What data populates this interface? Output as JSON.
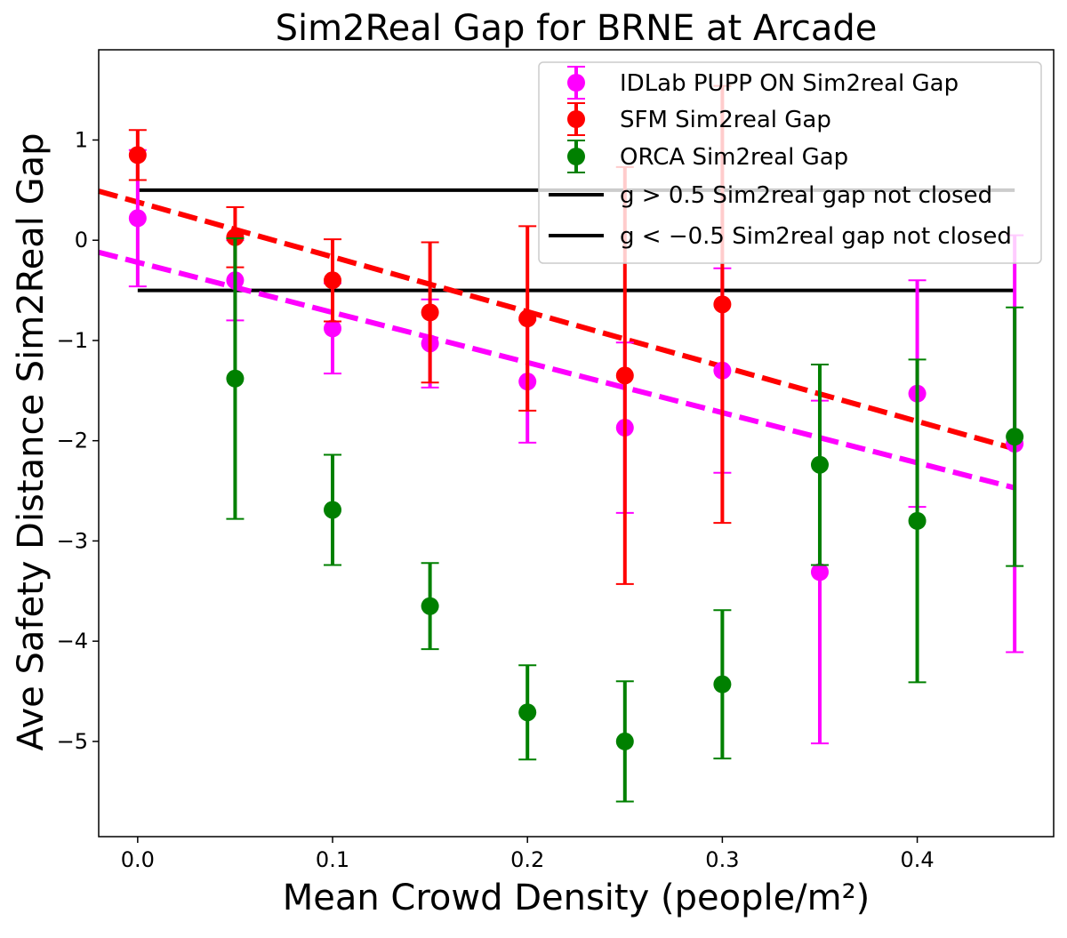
{
  "chart_data": {
    "type": "scatter",
    "title": "Sim2Real Gap for BRNE at Arcade",
    "xlabel": "Mean Crowd Density (people/m²)",
    "ylabel": "Ave Safety Distance Sim2Real Gap",
    "xlim": [
      -0.02,
      0.47
    ],
    "ylim": [
      -5.95,
      1.9
    ],
    "xticks": [
      0.0,
      0.1,
      0.2,
      0.3,
      0.4
    ],
    "xtick_labels": [
      "0.0",
      "0.1",
      "0.2",
      "0.3",
      "0.4"
    ],
    "yticks": [
      -5,
      -4,
      -3,
      -2,
      -1,
      0,
      1
    ],
    "ytick_labels": [
      "−5",
      "−4",
      "−3",
      "−2",
      "−1",
      "0",
      "1"
    ],
    "grid": false,
    "legend_position": "top-right",
    "series": [
      {
        "name": "IDLab PUPP ON Sim2real Gap",
        "color": "#ff00ff",
        "x": [
          0.0,
          0.05,
          0.1,
          0.15,
          0.2,
          0.25,
          0.3,
          0.35,
          0.4,
          0.45
        ],
        "y": [
          0.22,
          -0.4,
          -0.88,
          -1.03,
          -1.41,
          -1.87,
          -1.3,
          -3.31,
          -1.53,
          -2.03
        ],
        "yerr": [
          0.68,
          0.4,
          0.45,
          0.44,
          0.61,
          0.85,
          1.02,
          1.71,
          1.13,
          2.08
        ],
        "fit": [
          [
            -0.02,
            -0.12
          ],
          [
            0.45,
            -2.47
          ]
        ]
      },
      {
        "name": "SFM Sim2real Gap",
        "color": "#ff0000",
        "x": [
          0.0,
          0.05,
          0.1,
          0.15,
          0.2,
          0.25,
          0.3
        ],
        "y": [
          0.85,
          0.03,
          -0.4,
          -0.72,
          -0.78,
          -1.35,
          -0.64
        ],
        "yerr": [
          0.25,
          0.3,
          0.41,
          0.7,
          0.92,
          2.08,
          2.18
        ],
        "fit": [
          [
            -0.02,
            0.49
          ],
          [
            0.45,
            -2.08
          ]
        ]
      },
      {
        "name": "ORCA Sim2real Gap",
        "color": "#008000",
        "x": [
          0.05,
          0.1,
          0.15,
          0.2,
          0.25,
          0.3,
          0.35,
          0.4,
          0.45
        ],
        "y": [
          -1.38,
          -2.69,
          -3.65,
          -4.71,
          -5.0,
          -4.43,
          -2.24,
          -2.8,
          -1.96
        ],
        "yerr": [
          1.4,
          0.55,
          0.43,
          0.47,
          0.6,
          0.74,
          1.0,
          1.61,
          1.29
        ]
      }
    ],
    "reference_lines": [
      {
        "label": "g > 0.5 Sim2real gap not closed",
        "y": 0.5,
        "color": "#000000"
      },
      {
        "label": "g < −0.5 Sim2real gap not closed",
        "y": -0.5,
        "color": "#000000"
      }
    ]
  }
}
